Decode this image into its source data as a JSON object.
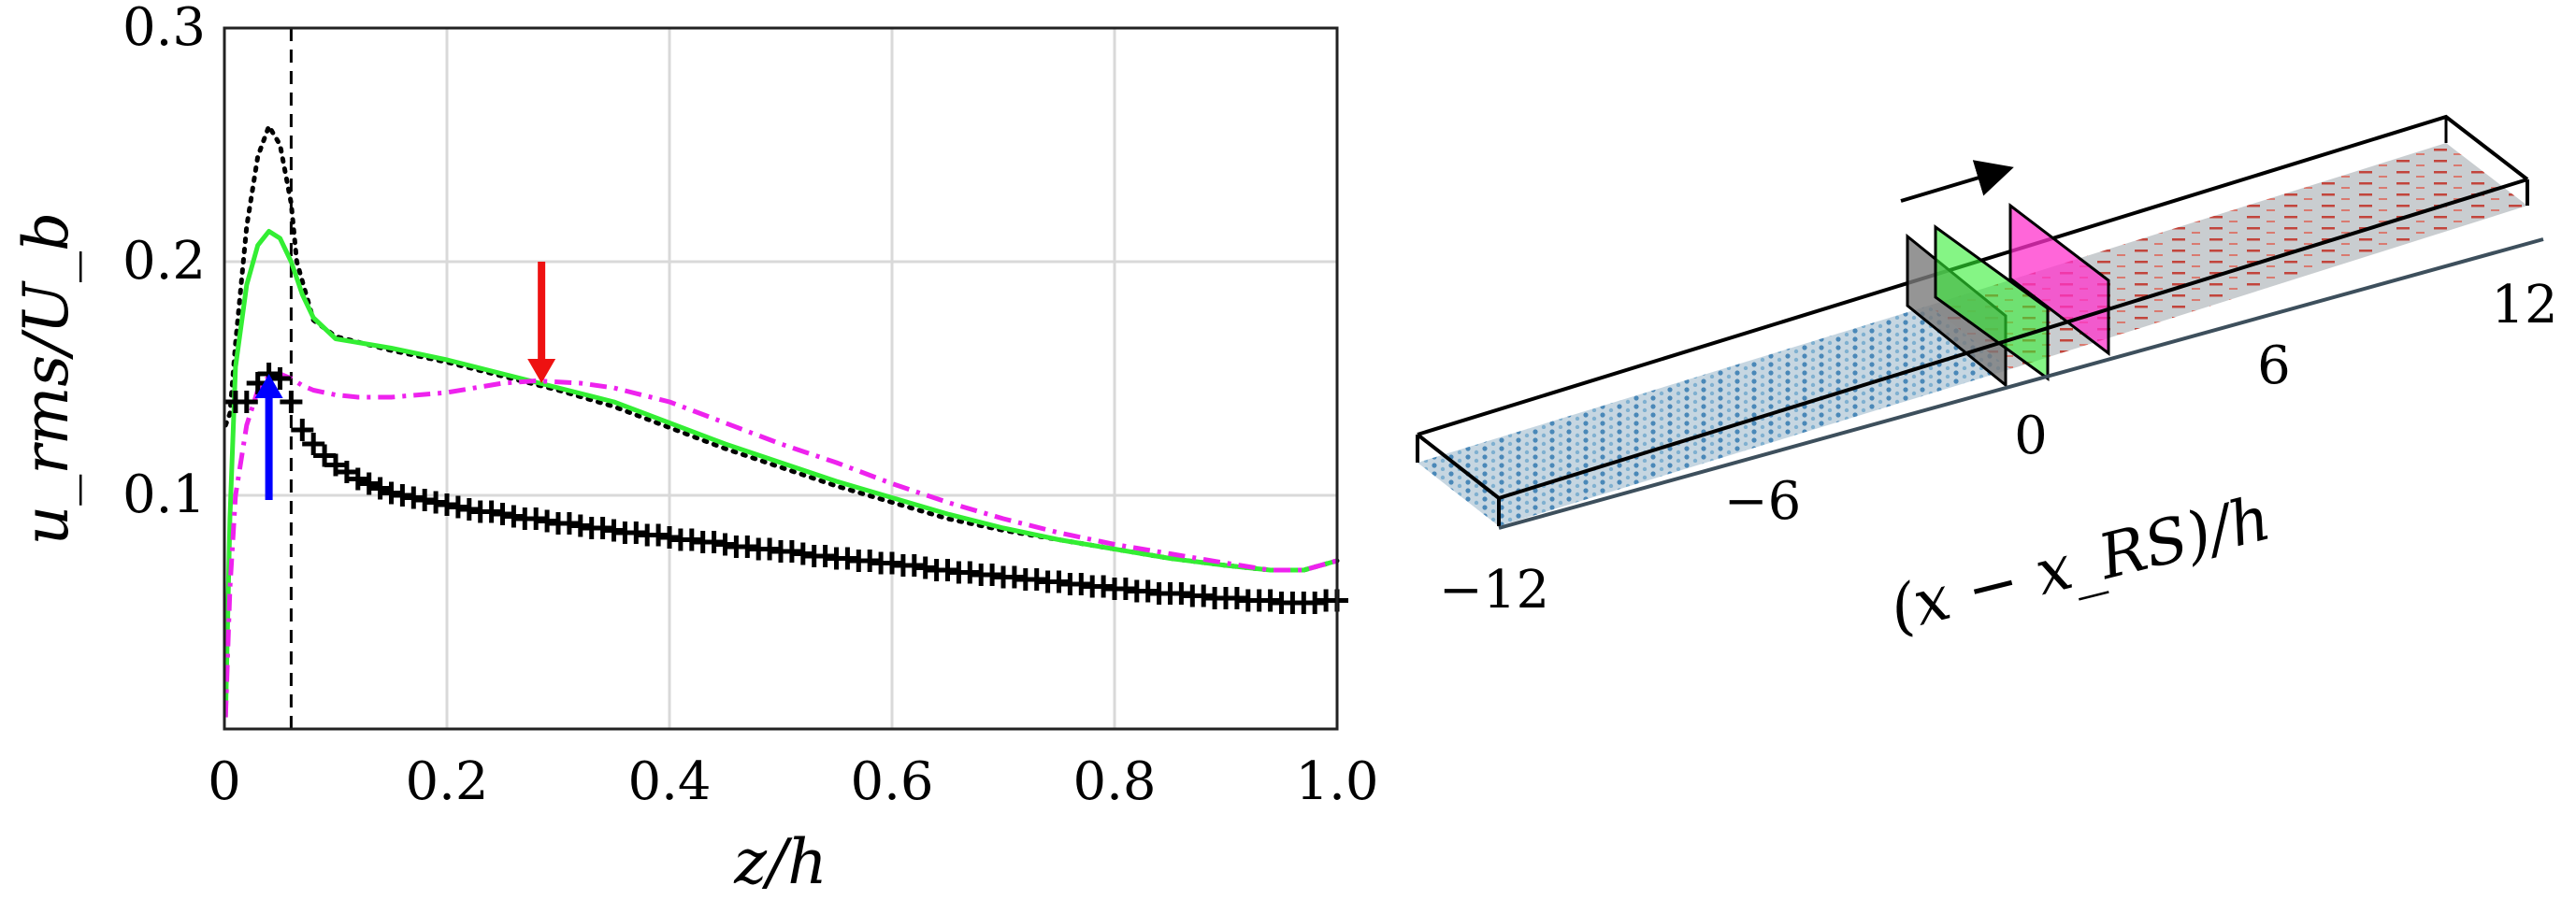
{
  "chart_data": [
    {
      "type": "line",
      "xlabel": "z/h",
      "ylabel": "u_rms/U_b",
      "xlim": [
        0,
        1.0
      ],
      "ylim": [
        0,
        0.3
      ],
      "xticks": [
        "0",
        "0.2",
        "0.4",
        "0.6",
        "0.8",
        "1.0"
      ],
      "yticks": [
        "0.1",
        "0.2",
        "0.3"
      ],
      "grid": true,
      "vline_x": 0.06,
      "series": [
        {
          "style": "dotted",
          "color": "#000000",
          "x": [
            0.001,
            0.005,
            0.01,
            0.02,
            0.03,
            0.04,
            0.05,
            0.06,
            0.065,
            0.08,
            0.1,
            0.15,
            0.2,
            0.25,
            0.3,
            0.35,
            0.4,
            0.45,
            0.5,
            0.55,
            0.6,
            0.65,
            0.7,
            0.75,
            0.8,
            0.85,
            0.9,
            0.94,
            0.97,
            1.0
          ],
          "y": [
            0.13,
            0.135,
            0.165,
            0.215,
            0.245,
            0.258,
            0.25,
            0.225,
            0.2,
            0.175,
            0.168,
            0.162,
            0.157,
            0.151,
            0.145,
            0.138,
            0.129,
            0.12,
            0.112,
            0.104,
            0.097,
            0.09,
            0.085,
            0.081,
            0.077,
            0.073,
            0.07,
            0.068,
            0.068,
            0.072
          ]
        },
        {
          "style": "solid",
          "color": "#33ee33",
          "x": [
            0.001,
            0.005,
            0.01,
            0.02,
            0.03,
            0.04,
            0.05,
            0.06,
            0.07,
            0.08,
            0.1,
            0.15,
            0.2,
            0.25,
            0.3,
            0.35,
            0.4,
            0.45,
            0.5,
            0.55,
            0.6,
            0.65,
            0.7,
            0.75,
            0.8,
            0.85,
            0.9,
            0.94,
            0.97,
            1.0
          ],
          "y": [
            0.005,
            0.09,
            0.155,
            0.19,
            0.207,
            0.213,
            0.21,
            0.2,
            0.186,
            0.176,
            0.167,
            0.163,
            0.158,
            0.152,
            0.146,
            0.14,
            0.131,
            0.122,
            0.114,
            0.106,
            0.099,
            0.092,
            0.086,
            0.081,
            0.077,
            0.073,
            0.07,
            0.068,
            0.068,
            0.072
          ]
        },
        {
          "style": "dashdot",
          "color": "#ee22ee",
          "x": [
            0.001,
            0.005,
            0.01,
            0.02,
            0.03,
            0.04,
            0.05,
            0.06,
            0.07,
            0.08,
            0.1,
            0.12,
            0.15,
            0.2,
            0.25,
            0.28,
            0.32,
            0.35,
            0.4,
            0.45,
            0.5,
            0.55,
            0.6,
            0.65,
            0.7,
            0.75,
            0.8,
            0.85,
            0.9,
            0.94,
            0.97,
            1.0
          ],
          "y": [
            0.005,
            0.06,
            0.1,
            0.13,
            0.145,
            0.151,
            0.152,
            0.15,
            0.147,
            0.145,
            0.143,
            0.142,
            0.142,
            0.144,
            0.148,
            0.149,
            0.148,
            0.146,
            0.14,
            0.131,
            0.122,
            0.114,
            0.105,
            0.097,
            0.09,
            0.084,
            0.079,
            0.075,
            0.071,
            0.068,
            0.068,
            0.072
          ]
        },
        {
          "style": "markers-plus",
          "color": "#000000",
          "x": [
            0.01,
            0.02,
            0.03,
            0.04,
            0.05,
            0.06,
            0.07,
            0.08,
            0.09,
            0.1,
            0.11,
            0.12,
            0.13,
            0.14,
            0.15,
            0.16,
            0.17,
            0.18,
            0.19,
            0.2,
            0.21,
            0.22,
            0.23,
            0.24,
            0.25,
            0.26,
            0.27,
            0.28,
            0.29,
            0.3,
            0.31,
            0.32,
            0.33,
            0.34,
            0.35,
            0.36,
            0.37,
            0.38,
            0.39,
            0.4,
            0.41,
            0.42,
            0.43,
            0.44,
            0.45,
            0.46,
            0.47,
            0.48,
            0.49,
            0.5,
            0.51,
            0.52,
            0.53,
            0.54,
            0.55,
            0.56,
            0.57,
            0.58,
            0.59,
            0.6,
            0.61,
            0.62,
            0.63,
            0.64,
            0.65,
            0.66,
            0.67,
            0.68,
            0.69,
            0.7,
            0.71,
            0.72,
            0.73,
            0.74,
            0.75,
            0.76,
            0.77,
            0.78,
            0.79,
            0.8,
            0.81,
            0.82,
            0.83,
            0.84,
            0.85,
            0.86,
            0.87,
            0.88,
            0.89,
            0.9,
            0.91,
            0.92,
            0.93,
            0.94,
            0.95,
            0.96,
            0.97,
            0.98,
            0.99,
            1.0
          ],
          "y": [
            0.14,
            0.14,
            0.148,
            0.152,
            0.15,
            0.14,
            0.128,
            0.122,
            0.117,
            0.113,
            0.11,
            0.107,
            0.105,
            0.103,
            0.101,
            0.1,
            0.099,
            0.098,
            0.097,
            0.096,
            0.095,
            0.094,
            0.093,
            0.093,
            0.092,
            0.091,
            0.09,
            0.09,
            0.089,
            0.088,
            0.088,
            0.087,
            0.086,
            0.086,
            0.085,
            0.084,
            0.084,
            0.083,
            0.083,
            0.082,
            0.081,
            0.081,
            0.08,
            0.08,
            0.079,
            0.078,
            0.078,
            0.077,
            0.077,
            0.076,
            0.076,
            0.075,
            0.074,
            0.074,
            0.073,
            0.073,
            0.072,
            0.072,
            0.071,
            0.071,
            0.07,
            0.07,
            0.069,
            0.068,
            0.068,
            0.067,
            0.067,
            0.066,
            0.066,
            0.065,
            0.065,
            0.064,
            0.064,
            0.063,
            0.063,
            0.062,
            0.062,
            0.061,
            0.061,
            0.06,
            0.06,
            0.059,
            0.059,
            0.058,
            0.058,
            0.058,
            0.057,
            0.057,
            0.056,
            0.056,
            0.056,
            0.055,
            0.055,
            0.055,
            0.054,
            0.054,
            0.054,
            0.054,
            0.055,
            0.055
          ]
        }
      ],
      "annotations": [
        {
          "type": "arrow-down",
          "color": "#ee1111",
          "x": 0.285,
          "y_from": 0.2,
          "y_to": 0.148
        },
        {
          "type": "arrow-up",
          "color": "#0000ff",
          "x": 0.04,
          "y_from": 0.098,
          "y_to": 0.152
        }
      ]
    },
    {
      "type": "diagram",
      "xlabel": "(x − x_RS)/h",
      "ticks": [
        "−12",
        "−6",
        "0",
        "6",
        "12"
      ]
    }
  ]
}
